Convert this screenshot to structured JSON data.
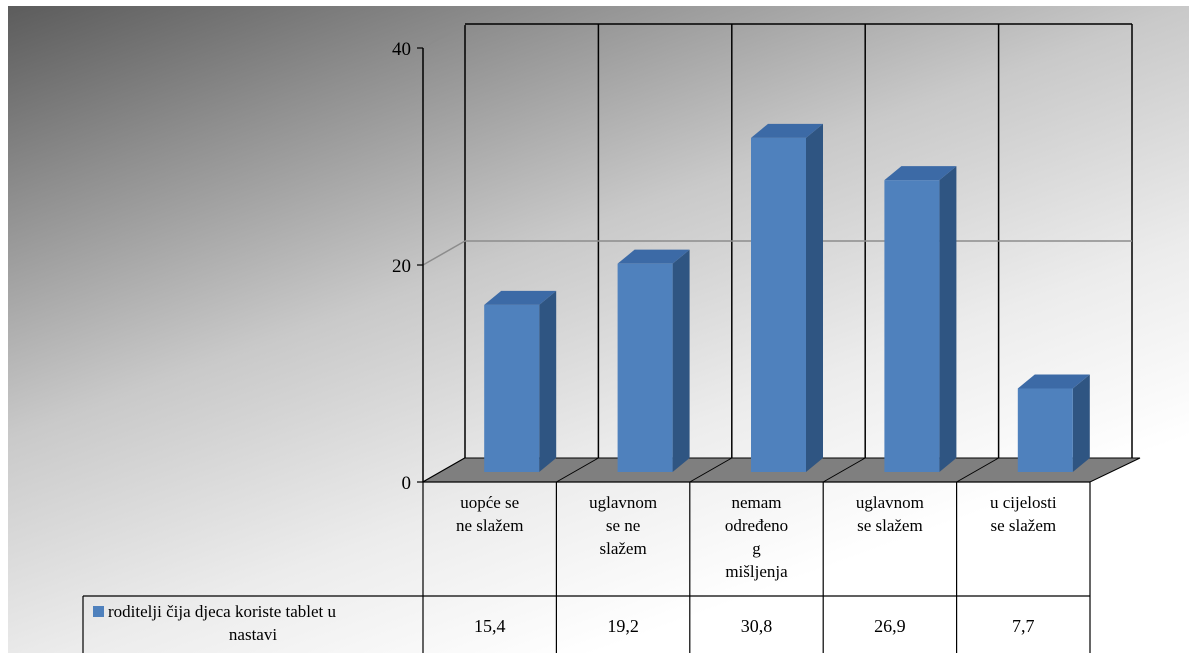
{
  "chart_data": {
    "type": "bar",
    "categories": [
      [
        "uopće se",
        "ne slažem"
      ],
      [
        "uglavnom",
        "se ne",
        "slažem"
      ],
      [
        "nemam",
        "određeno",
        "g",
        "mišljenja"
      ],
      [
        "uglavnom",
        "se slažem"
      ],
      [
        "u cijelosti",
        "se slažem"
      ]
    ],
    "series": [
      {
        "name": [
          "roditelji čija djeca koriste tablet u",
          "nastavi"
        ],
        "values": [
          15.4,
          19.2,
          30.8,
          26.9,
          7.7
        ],
        "value_labels": [
          "15,4",
          "19,2",
          "30,8",
          "26,9",
          "7,7"
        ],
        "color": "#4f81bd"
      }
    ],
    "y_ticks": [
      "0",
      "20",
      "40"
    ],
    "ylim": [
      0,
      40
    ],
    "grid": true,
    "legend": "data-table",
    "style": "3d-column"
  }
}
